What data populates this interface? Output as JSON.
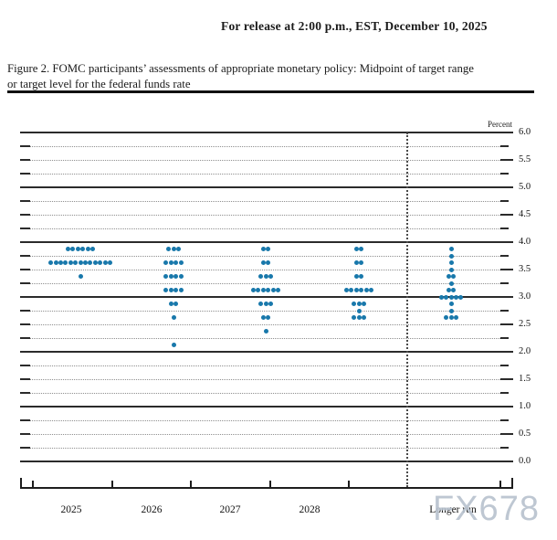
{
  "header": {
    "release_line": "For release at 2:00 p.m., EST, December 10, 2025"
  },
  "caption": {
    "line1": "Figure 2. FOMC participants’ assessments of appropriate monetary policy: Midpoint of target range",
    "line2": "or target level for the federal funds rate"
  },
  "watermark": {
    "text": "FX678"
  },
  "chart_data": {
    "type": "scatter",
    "title": "FOMC participants' assessments of appropriate monetary policy: Midpoint of target range or target level for the federal funds rate",
    "ylabel": "Percent",
    "ylim": [
      0.0,
      6.0
    ],
    "grid": "solid lines at each 1.0, dotted lines at each 0.25, labels every 0.5",
    "ytick_labels": [
      "6.0",
      "5.5",
      "5.0",
      "4.5",
      "4.0",
      "3.5",
      "3.0",
      "2.5",
      "2.0",
      "1.5",
      "1.0",
      "0.5",
      "0.0"
    ],
    "categories": [
      "2025",
      "2026",
      "2027",
      "2028",
      "Longer run"
    ],
    "dot_color": "#1878ab",
    "dots": [
      {
        "category": "2025",
        "rate": 3.875,
        "count": 6
      },
      {
        "category": "2025",
        "rate": 3.625,
        "count": 13
      },
      {
        "category": "2025",
        "rate": 3.375,
        "count": 1
      },
      {
        "category": "2026",
        "rate": 3.875,
        "count": 3
      },
      {
        "category": "2026",
        "rate": 3.625,
        "count": 4
      },
      {
        "category": "2026",
        "rate": 3.375,
        "count": 4
      },
      {
        "category": "2026",
        "rate": 3.125,
        "count": 4
      },
      {
        "category": "2026",
        "rate": 2.875,
        "count": 2
      },
      {
        "category": "2026",
        "rate": 2.625,
        "count": 1
      },
      {
        "category": "2026",
        "rate": 2.125,
        "count": 1
      },
      {
        "category": "2027",
        "rate": 3.875,
        "count": 2
      },
      {
        "category": "2027",
        "rate": 3.625,
        "count": 2
      },
      {
        "category": "2027",
        "rate": 3.375,
        "count": 3
      },
      {
        "category": "2027",
        "rate": 3.125,
        "count": 6
      },
      {
        "category": "2027",
        "rate": 2.875,
        "count": 3
      },
      {
        "category": "2027",
        "rate": 2.625,
        "count": 2
      },
      {
        "category": "2027",
        "rate": 2.375,
        "count": 1
      },
      {
        "category": "2028",
        "rate": 3.875,
        "count": 2
      },
      {
        "category": "2028",
        "rate": 3.625,
        "count": 2
      },
      {
        "category": "2028",
        "rate": 3.375,
        "count": 2
      },
      {
        "category": "2028",
        "rate": 3.125,
        "count": 6
      },
      {
        "category": "2028",
        "rate": 2.875,
        "count": 3
      },
      {
        "category": "2028",
        "rate": 2.75,
        "count": 1
      },
      {
        "category": "2028",
        "rate": 2.625,
        "count": 3
      },
      {
        "category": "Longer run",
        "rate": 3.875,
        "count": 1
      },
      {
        "category": "Longer run",
        "rate": 3.75,
        "count": 1
      },
      {
        "category": "Longer run",
        "rate": 3.625,
        "count": 1
      },
      {
        "category": "Longer run",
        "rate": 3.5,
        "count": 1
      },
      {
        "category": "Longer run",
        "rate": 3.375,
        "count": 2
      },
      {
        "category": "Longer run",
        "rate": 3.25,
        "count": 1
      },
      {
        "category": "Longer run",
        "rate": 3.125,
        "count": 2
      },
      {
        "category": "Longer run",
        "rate": 3.0,
        "count": 5
      },
      {
        "category": "Longer run",
        "rate": 2.875,
        "count": 1
      },
      {
        "category": "Longer run",
        "rate": 2.75,
        "count": 1
      },
      {
        "category": "Longer run",
        "rate": 2.625,
        "count": 3
      }
    ]
  }
}
